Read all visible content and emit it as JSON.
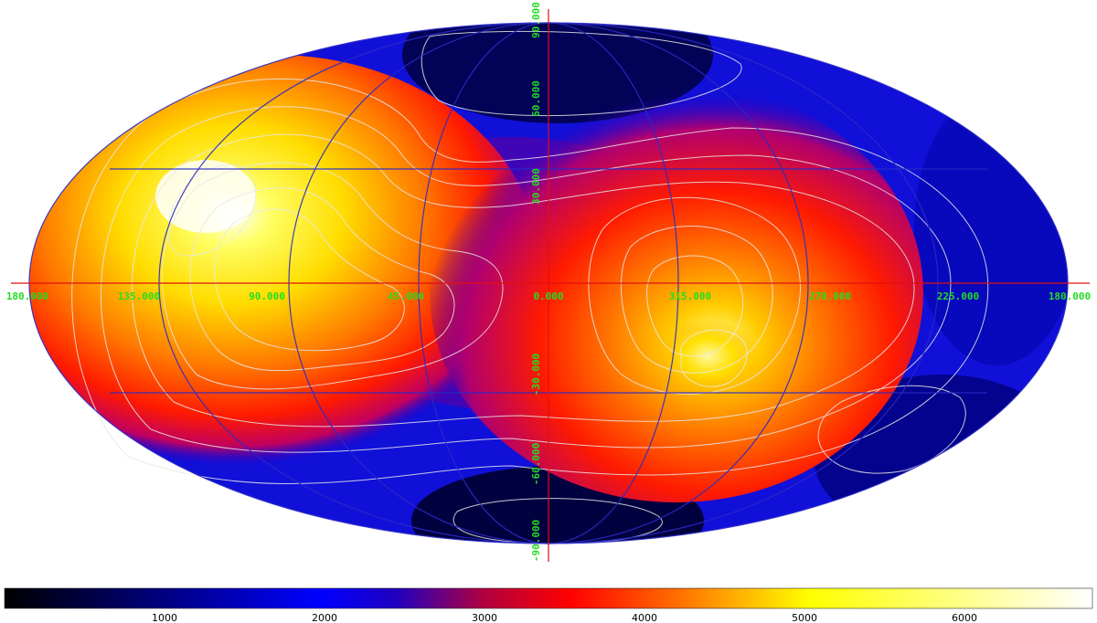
{
  "map": {
    "projection": "mollweide",
    "grid_color": "#2a2ac8",
    "axis_line_color": "#e01010",
    "contour_color": "#e8e8e8",
    "label_color": "#22dd22",
    "longitude_labels": [
      "180.000",
      "135.000",
      "90.000",
      "45.000",
      "0.000",
      "315.000",
      "270.000",
      "225.000",
      "180.000"
    ],
    "latitude_labels": [
      "90.000",
      "60.000",
      "30.000",
      "-30.000",
      "-60.000",
      "-90.000"
    ]
  },
  "colorbar": {
    "colormap": "heat",
    "stops": [
      "#000000",
      "#0000ff",
      "#ff0000",
      "#ffff00",
      "#ffffff"
    ],
    "min": 0,
    "max": 6800,
    "tick_labels": [
      "1000",
      "2000",
      "3000",
      "4000",
      "5000",
      "6000"
    ],
    "tick_values": [
      1000,
      2000,
      3000,
      4000,
      5000,
      6000
    ]
  }
}
